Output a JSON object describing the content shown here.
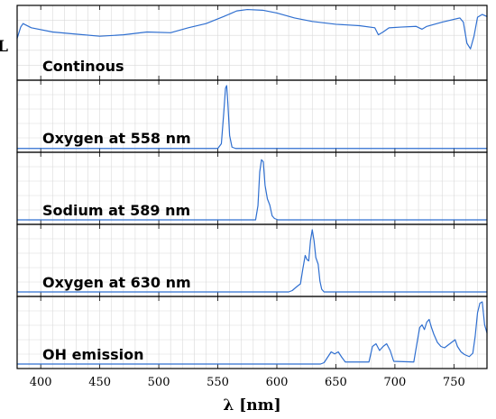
{
  "chart_data": {
    "type": "line",
    "xlabel": "λ [nm]",
    "ylabel": "L",
    "xlim": [
      380,
      778
    ],
    "x_ticks": [
      400,
      450,
      500,
      550,
      600,
      650,
      700,
      750
    ],
    "grid": true,
    "line_color": "#2f6fd0",
    "panels": [
      {
        "label": "Continous",
        "ylim": [
          0,
          1
        ],
        "points": [
          [
            380,
            0.57
          ],
          [
            383,
            0.73
          ],
          [
            385,
            0.78
          ],
          [
            392,
            0.72
          ],
          [
            410,
            0.66
          ],
          [
            430,
            0.63
          ],
          [
            450,
            0.6
          ],
          [
            470,
            0.62
          ],
          [
            490,
            0.66
          ],
          [
            510,
            0.65
          ],
          [
            525,
            0.72
          ],
          [
            540,
            0.78
          ],
          [
            555,
            0.88
          ],
          [
            566,
            0.96
          ],
          [
            575,
            0.98
          ],
          [
            588,
            0.97
          ],
          [
            600,
            0.93
          ],
          [
            615,
            0.86
          ],
          [
            630,
            0.81
          ],
          [
            650,
            0.77
          ],
          [
            670,
            0.75
          ],
          [
            683,
            0.72
          ],
          [
            686,
            0.62
          ],
          [
            690,
            0.66
          ],
          [
            695,
            0.72
          ],
          [
            705,
            0.73
          ],
          [
            718,
            0.74
          ],
          [
            723,
            0.7
          ],
          [
            727,
            0.74
          ],
          [
            740,
            0.8
          ],
          [
            755,
            0.86
          ],
          [
            758,
            0.8
          ],
          [
            761,
            0.5
          ],
          [
            764,
            0.42
          ],
          [
            767,
            0.6
          ],
          [
            770,
            0.87
          ],
          [
            774,
            0.91
          ],
          [
            778,
            0.88
          ]
        ]
      },
      {
        "label": "Oxygen at 558 nm",
        "ylim": [
          0,
          1
        ],
        "points": [
          [
            380,
            0.03
          ],
          [
            550,
            0.03
          ],
          [
            553,
            0.1
          ],
          [
            555,
            0.55
          ],
          [
            556.5,
            0.92
          ],
          [
            557.5,
            0.96
          ],
          [
            558.5,
            0.7
          ],
          [
            560,
            0.22
          ],
          [
            562,
            0.05
          ],
          [
            565,
            0.03
          ],
          [
            778,
            0.03
          ]
        ]
      },
      {
        "label": "Sodium at 589 nm",
        "ylim": [
          0,
          1
        ],
        "points": [
          [
            380,
            0.04
          ],
          [
            582,
            0.04
          ],
          [
            584,
            0.25
          ],
          [
            585.5,
            0.75
          ],
          [
            587,
            0.93
          ],
          [
            588.5,
            0.9
          ],
          [
            590,
            0.55
          ],
          [
            592,
            0.35
          ],
          [
            594,
            0.26
          ],
          [
            596,
            0.1
          ],
          [
            598,
            0.06
          ],
          [
            601,
            0.04
          ],
          [
            778,
            0.04
          ]
        ]
      },
      {
        "label": "Oxygen at 630 nm",
        "ylim": [
          0,
          1
        ],
        "points": [
          [
            380,
            0.04
          ],
          [
            610,
            0.04
          ],
          [
            613,
            0.06
          ],
          [
            617,
            0.12
          ],
          [
            620,
            0.16
          ],
          [
            622,
            0.38
          ],
          [
            624,
            0.58
          ],
          [
            625.5,
            0.52
          ],
          [
            627,
            0.5
          ],
          [
            628.5,
            0.8
          ],
          [
            630,
            0.96
          ],
          [
            631.5,
            0.8
          ],
          [
            633,
            0.55
          ],
          [
            635,
            0.45
          ],
          [
            636.5,
            0.2
          ],
          [
            638,
            0.08
          ],
          [
            640,
            0.04
          ],
          [
            778,
            0.04
          ]
        ]
      },
      {
        "label": "OH emission",
        "ylim": [
          0,
          1
        ],
        "points": [
          [
            380,
            0.04
          ],
          [
            637,
            0.04
          ],
          [
            640,
            0.06
          ],
          [
            643,
            0.14
          ],
          [
            646,
            0.22
          ],
          [
            649,
            0.19
          ],
          [
            652,
            0.22
          ],
          [
            655,
            0.14
          ],
          [
            658,
            0.07
          ],
          [
            678,
            0.07
          ],
          [
            681,
            0.3
          ],
          [
            684,
            0.34
          ],
          [
            687,
            0.24
          ],
          [
            690,
            0.3
          ],
          [
            693,
            0.34
          ],
          [
            696,
            0.24
          ],
          [
            699,
            0.08
          ],
          [
            716,
            0.07
          ],
          [
            719,
            0.38
          ],
          [
            721,
            0.58
          ],
          [
            723,
            0.62
          ],
          [
            725,
            0.55
          ],
          [
            727,
            0.66
          ],
          [
            729,
            0.7
          ],
          [
            731,
            0.58
          ],
          [
            733,
            0.48
          ],
          [
            736,
            0.36
          ],
          [
            739,
            0.3
          ],
          [
            742,
            0.28
          ],
          [
            745,
            0.32
          ],
          [
            748,
            0.36
          ],
          [
            751,
            0.4
          ],
          [
            753,
            0.3
          ],
          [
            756,
            0.22
          ],
          [
            759,
            0.18
          ],
          [
            763,
            0.15
          ],
          [
            766,
            0.2
          ],
          [
            768,
            0.45
          ],
          [
            770,
            0.8
          ],
          [
            772,
            0.94
          ],
          [
            774,
            0.96
          ],
          [
            776,
            0.62
          ],
          [
            778,
            0.5
          ]
        ]
      }
    ]
  }
}
